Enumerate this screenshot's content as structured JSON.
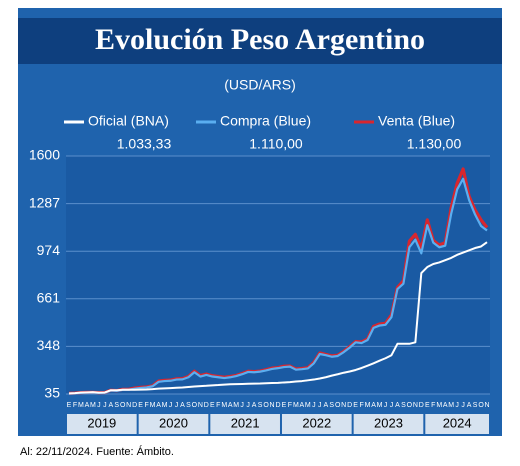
{
  "chart_data": {
    "type": "line",
    "title": "Evolución Peso Argentino",
    "subtitle": "(USD/ARS)",
    "footer": "Al: 22/11/2024. Fuente: Ámbito.",
    "categories": [
      "E",
      "F",
      "M",
      "A",
      "M",
      "J",
      "J",
      "A",
      "S",
      "O",
      "N",
      "D",
      "E",
      "F",
      "M",
      "A",
      "M",
      "J",
      "J",
      "A",
      "S",
      "O",
      "N",
      "D",
      "E",
      "F",
      "M",
      "A",
      "M",
      "J",
      "J",
      "A",
      "S",
      "O",
      "N",
      "D",
      "E",
      "F",
      "M",
      "A",
      "M",
      "J",
      "J",
      "A",
      "S",
      "O",
      "N",
      "D",
      "E",
      "F",
      "M",
      "A",
      "M",
      "J",
      "J",
      "A",
      "S",
      "O",
      "N",
      "D",
      "E",
      "F",
      "M",
      "A",
      "M",
      "J",
      "J",
      "A",
      "S",
      "O",
      "N"
    ],
    "years": [
      "2019",
      "2020",
      "2021",
      "2022",
      "2023",
      "2024"
    ],
    "ylim": [
      35,
      1600
    ],
    "yticks": [
      35,
      348,
      661,
      974,
      1287,
      1600
    ],
    "grid": true,
    "series": [
      {
        "name": "Oficial (BNA)",
        "color": "#ffffff",
        "values": [
          39,
          41,
          45,
          46,
          47,
          44,
          45,
          60,
          60,
          63,
          63,
          63,
          64,
          65,
          67,
          70,
          72,
          74,
          76,
          78,
          81,
          84,
          87,
          89,
          92,
          94,
          97,
          99,
          100,
          101,
          102,
          103,
          104,
          106,
          107,
          108,
          111,
          113,
          117,
          120,
          125,
          130,
          137,
          145,
          156,
          165,
          175,
          183,
          193,
          206,
          221,
          237,
          254,
          270,
          290,
          365,
          365,
          365,
          375,
          830,
          870,
          890,
          900,
          915,
          930,
          950,
          965,
          980,
          995,
          1005,
          1033.33
        ],
        "value_labels": [
          null,
          null,
          null,
          null,
          null,
          null,
          null,
          null,
          null,
          null,
          null,
          null,
          null,
          null,
          null,
          null,
          null,
          null,
          null,
          null,
          null,
          null,
          null,
          null,
          null,
          null,
          null,
          null,
          null,
          null,
          null,
          null,
          null,
          null,
          null,
          null,
          null,
          null,
          null,
          null,
          null,
          null,
          null,
          null,
          null,
          null,
          null,
          null,
          null,
          null,
          null,
          null,
          null,
          null,
          null,
          null,
          null,
          null,
          null,
          null,
          null,
          null,
          null,
          null,
          null,
          null,
          null,
          null,
          null,
          null,
          "1.033,33"
        ]
      },
      {
        "name": "Compra (Blue)",
        "color": "#5aaef0",
        "values": [
          37,
          39,
          42,
          44,
          44,
          42,
          43,
          58,
          55,
          63,
          63,
          70,
          75,
          78,
          86,
          115,
          120,
          122,
          130,
          131,
          145,
          178,
          150,
          160,
          150,
          145,
          140,
          145,
          153,
          165,
          180,
          178,
          182,
          190,
          200,
          205,
          212,
          215,
          195,
          198,
          203,
          237,
          298,
          290,
          280,
          285,
          310,
          340,
          375,
          370,
          390,
          470,
          485,
          490,
          540,
          725,
          760,
          1000,
          1050,
          960,
          1145,
          1030,
          1000,
          1010,
          1220,
          1380,
          1450,
          1310,
          1215,
          1140,
          1110
        ],
        "value_labels": [
          null,
          null,
          null,
          null,
          null,
          null,
          null,
          null,
          null,
          null,
          null,
          null,
          null,
          null,
          null,
          null,
          null,
          null,
          null,
          null,
          null,
          null,
          null,
          null,
          null,
          null,
          null,
          null,
          null,
          null,
          null,
          null,
          null,
          null,
          null,
          null,
          null,
          null,
          null,
          null,
          null,
          null,
          null,
          null,
          null,
          null,
          null,
          null,
          null,
          null,
          null,
          null,
          null,
          null,
          null,
          null,
          null,
          null,
          null,
          null,
          null,
          null,
          null,
          null,
          null,
          null,
          null,
          null,
          null,
          null,
          "1.110,00"
        ]
      },
      {
        "name": "Venta (Blue)",
        "color": "#d8262e",
        "values": [
          39,
          41,
          44,
          46,
          46,
          44,
          45,
          60,
          57,
          66,
          66,
          74,
          79,
          81,
          89,
          120,
          125,
          126,
          135,
          136,
          150,
          185,
          156,
          166,
          155,
          150,
          145,
          150,
          157,
          170,
          185,
          182,
          186,
          195,
          205,
          209,
          218,
          219,
          200,
          203,
          208,
          243,
          305,
          295,
          286,
          290,
          315,
          346,
          380,
          377,
          397,
          480,
          495,
          500,
          555,
          735,
          780,
          1040,
          1085,
          990,
          1180,
          1045,
          1015,
          1030,
          1260,
          1420,
          1515,
          1335,
          1245,
          1180,
          1130
        ],
        "value_labels": [
          null,
          null,
          null,
          null,
          null,
          null,
          null,
          null,
          null,
          null,
          null,
          null,
          null,
          null,
          null,
          null,
          null,
          null,
          null,
          null,
          null,
          null,
          null,
          null,
          null,
          null,
          null,
          null,
          null,
          null,
          null,
          null,
          null,
          null,
          null,
          null,
          null,
          null,
          null,
          null,
          null,
          null,
          null,
          null,
          null,
          null,
          null,
          null,
          null,
          null,
          null,
          null,
          null,
          null,
          null,
          null,
          null,
          null,
          null,
          null,
          null,
          null,
          null,
          null,
          null,
          null,
          null,
          null,
          null,
          null,
          "1.130,00"
        ]
      }
    ]
  }
}
